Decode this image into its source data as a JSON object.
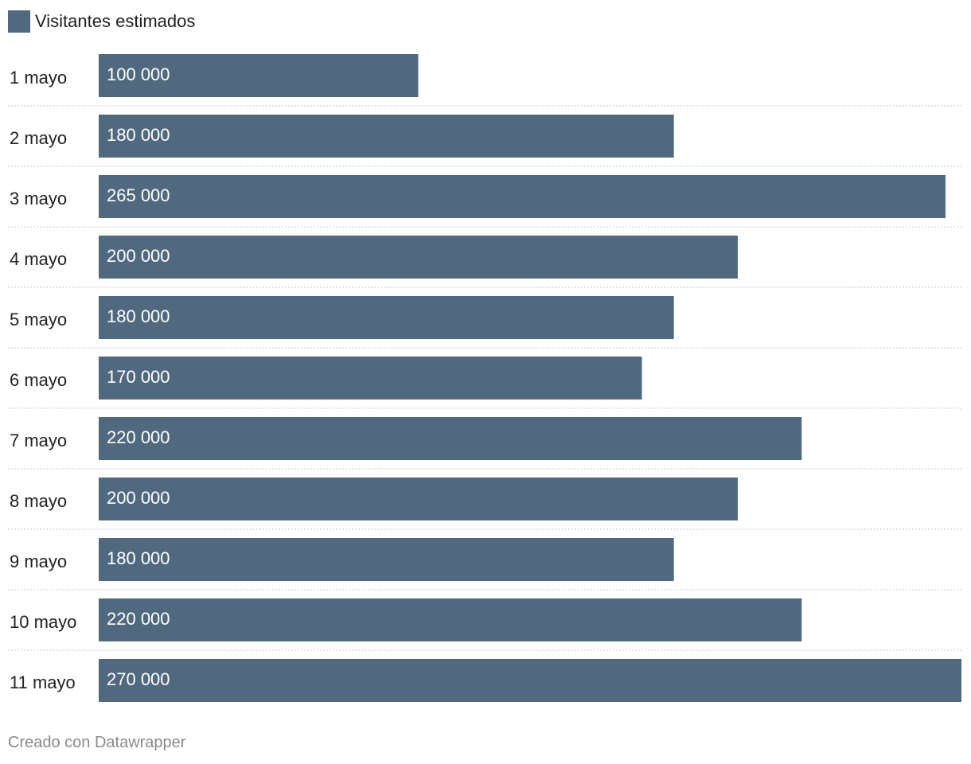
{
  "legend": {
    "label": "Visitantes estimados",
    "color": "#51697f"
  },
  "footer": {
    "credit": "Creado con Datawrapper"
  },
  "chart_data": {
    "type": "bar",
    "orientation": "horizontal",
    "categories": [
      "1 mayo",
      "2 mayo",
      "3 mayo",
      "4 mayo",
      "5 mayo",
      "6 mayo",
      "7 mayo",
      "8 mayo",
      "9 mayo",
      "10 mayo",
      "11 mayo"
    ],
    "series": [
      {
        "name": "Visitantes estimados",
        "values": [
          100000,
          180000,
          265000,
          200000,
          180000,
          170000,
          220000,
          200000,
          180000,
          220000,
          270000
        ],
        "labels": [
          "100 000",
          "180 000",
          "265 000",
          "200 000",
          "180 000",
          "170 000",
          "220 000",
          "200 000",
          "180 000",
          "220 000",
          "270 000"
        ],
        "color": "#51697f"
      }
    ],
    "xlim": [
      0,
      270000
    ],
    "grid": "dotted row separators",
    "legend_position": "top-left",
    "title": "",
    "xlabel": "",
    "ylabel": ""
  }
}
